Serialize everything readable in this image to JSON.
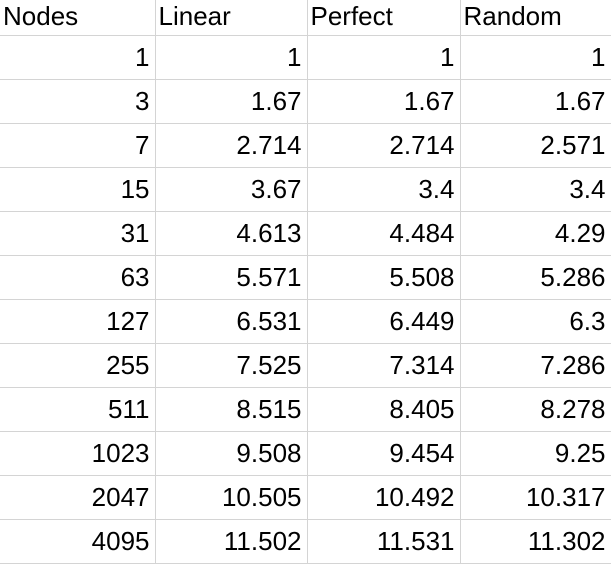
{
  "table": {
    "columns": [
      "Nodes",
      "Linear",
      "Perfect",
      "Random"
    ],
    "rows": [
      [
        "1",
        "1",
        "1",
        "1"
      ],
      [
        "3",
        "1.67",
        "1.67",
        "1.67"
      ],
      [
        "7",
        "2.714",
        "2.714",
        "2.571"
      ],
      [
        "15",
        "3.67",
        "3.4",
        "3.4"
      ],
      [
        "31",
        "4.613",
        "4.484",
        "4.29"
      ],
      [
        "63",
        "5.571",
        "5.508",
        "5.286"
      ],
      [
        "127",
        "6.531",
        "6.449",
        "6.3"
      ],
      [
        "255",
        "7.525",
        "7.314",
        "7.286"
      ],
      [
        "511",
        "8.515",
        "8.405",
        "8.278"
      ],
      [
        "1023",
        "9.508",
        "9.454",
        "9.25"
      ],
      [
        "2047",
        "10.505",
        "10.492",
        "10.317"
      ],
      [
        "4095",
        "11.502",
        "11.531",
        "11.302"
      ]
    ]
  }
}
